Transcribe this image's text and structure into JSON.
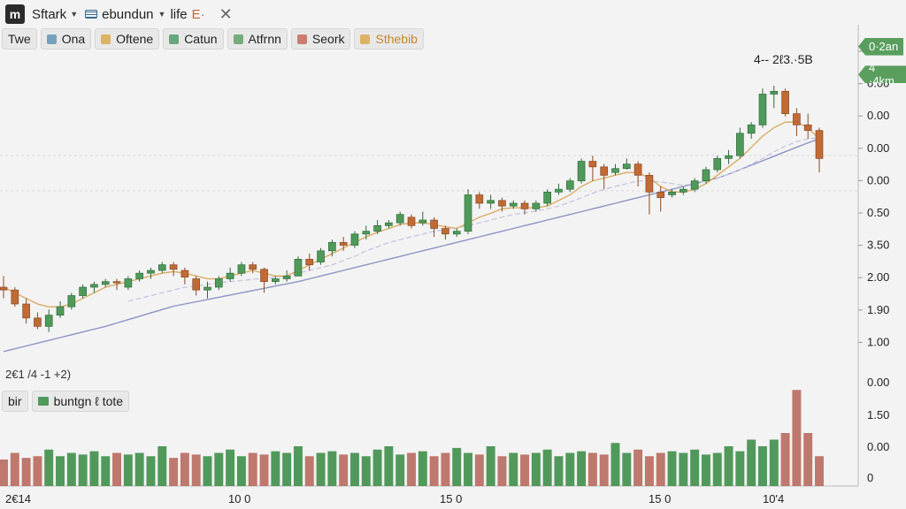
{
  "topbar": {
    "logo": "m",
    "symbol": "Sftark",
    "indicator_label": "ebundun",
    "interval": "life",
    "extra": "E·",
    "close_glyph": "✕"
  },
  "chips": [
    {
      "label": "Twe",
      "icon": "none",
      "color": "#222222",
      "swatch": ""
    },
    {
      "label": "Ona",
      "icon": "chart-icon",
      "color": "#222222",
      "swatch": "#4f8ab0"
    },
    {
      "label": "Oftene",
      "icon": "circle-icon",
      "color": "#222222",
      "swatch": "#d8a23b"
    },
    {
      "label": "Catun",
      "icon": "triangle-icon",
      "color": "#222222",
      "swatch": "#3f8f5a"
    },
    {
      "label": "Atfrnn",
      "icon": "shield-icon",
      "color": "#222222",
      "swatch": "#4f9a5a"
    },
    {
      "label": "Seork",
      "icon": "bars-icon",
      "color": "#222222",
      "swatch": "#c25a4a"
    },
    {
      "label": "Sthebib",
      "icon": "circle-icon",
      "color": "#c2872c",
      "swatch": "#d8a23b"
    }
  ],
  "ohlc_readout": "2€1 /4 -1 +2)",
  "price_note": "4-- 2ℓ3.·5B",
  "volume_legend": {
    "left": "bir",
    "label": "buntgn ℓ tote",
    "swatch": "#4f9a5a"
  },
  "tags": [
    {
      "label": "0·2an",
      "color": "#5a9e5e",
      "value": 6.6
    },
    {
      "label": "4 ·4km",
      "color": "#5a9e5e",
      "value": 6.1
    }
  ],
  "chart_data": {
    "type": "candlestick",
    "price_axis_labels": [
      "0.00",
      "0.00",
      "0.00",
      "0.00",
      "0.00",
      "0.50",
      "3.50",
      "2.00",
      "1.90",
      "1.00"
    ],
    "volume_axis_labels": [
      "0.00",
      "1.50",
      "0.00",
      "0"
    ],
    "x_tick_labels": [
      "2€14",
      "10 0",
      "15 0",
      "15 0",
      "10'4"
    ],
    "candles": [
      [
        2.3,
        2.5,
        2.25,
        2.1
      ],
      [
        2.25,
        2.3,
        2.0,
        1.95
      ],
      [
        2.0,
        2.1,
        1.75,
        1.65
      ],
      [
        1.75,
        1.85,
        1.6,
        1.55
      ],
      [
        1.6,
        1.9,
        1.8,
        1.5
      ],
      [
        1.8,
        2.05,
        1.95,
        1.75
      ],
      [
        1.95,
        2.2,
        2.15,
        1.9
      ],
      [
        2.15,
        2.35,
        2.3,
        2.1
      ],
      [
        2.3,
        2.4,
        2.35,
        2.2
      ],
      [
        2.35,
        2.45,
        2.4,
        2.3
      ],
      [
        2.4,
        2.45,
        2.38,
        2.25
      ],
      [
        2.3,
        2.5,
        2.45,
        2.25
      ],
      [
        2.45,
        2.6,
        2.55,
        2.4
      ],
      [
        2.55,
        2.65,
        2.6,
        2.45
      ],
      [
        2.6,
        2.75,
        2.7,
        2.55
      ],
      [
        2.7,
        2.75,
        2.62,
        2.5
      ],
      [
        2.6,
        2.65,
        2.48,
        2.35
      ],
      [
        2.45,
        2.5,
        2.25,
        2.15
      ],
      [
        2.25,
        2.4,
        2.3,
        2.1
      ],
      [
        2.3,
        2.5,
        2.45,
        2.25
      ],
      [
        2.45,
        2.65,
        2.55,
        2.4
      ],
      [
        2.55,
        2.75,
        2.7,
        2.5
      ],
      [
        2.7,
        2.75,
        2.62,
        2.55
      ],
      [
        2.62,
        2.65,
        2.4,
        2.2
      ],
      [
        2.4,
        2.5,
        2.45,
        2.35
      ],
      [
        2.45,
        2.6,
        2.5,
        2.4
      ],
      [
        2.5,
        2.85,
        2.8,
        2.5
      ],
      [
        2.8,
        2.9,
        2.7,
        2.6
      ],
      [
        2.75,
        3.0,
        2.95,
        2.7
      ],
      [
        2.95,
        3.15,
        3.1,
        2.85
      ],
      [
        3.1,
        3.2,
        3.05,
        2.95
      ],
      [
        3.05,
        3.3,
        3.25,
        3.0
      ],
      [
        3.25,
        3.4,
        3.3,
        3.15
      ],
      [
        3.3,
        3.5,
        3.4,
        3.25
      ],
      [
        3.4,
        3.5,
        3.45,
        3.35
      ],
      [
        3.45,
        3.65,
        3.6,
        3.4
      ],
      [
        3.55,
        3.6,
        3.4,
        3.35
      ],
      [
        3.45,
        3.65,
        3.5,
        3.4
      ],
      [
        3.5,
        3.55,
        3.35,
        3.2
      ],
      [
        3.35,
        3.4,
        3.25,
        3.15
      ],
      [
        3.25,
        3.35,
        3.3,
        3.2
      ],
      [
        3.3,
        4.05,
        3.95,
        3.25
      ],
      [
        3.95,
        4.0,
        3.8,
        3.7
      ],
      [
        3.8,
        3.95,
        3.85,
        3.7
      ],
      [
        3.85,
        3.9,
        3.75,
        3.65
      ],
      [
        3.75,
        3.85,
        3.8,
        3.7
      ],
      [
        3.8,
        3.85,
        3.7,
        3.6
      ],
      [
        3.7,
        3.85,
        3.8,
        3.65
      ],
      [
        3.8,
        4.05,
        4.0,
        3.75
      ],
      [
        4.0,
        4.15,
        4.05,
        3.95
      ],
      [
        4.05,
        4.25,
        4.2,
        4.0
      ],
      [
        4.2,
        4.6,
        4.55,
        4.15
      ],
      [
        4.55,
        4.65,
        4.45,
        4.2
      ],
      [
        4.45,
        4.5,
        4.3,
        4.05
      ],
      [
        4.35,
        4.5,
        4.42,
        4.3
      ],
      [
        4.42,
        4.6,
        4.5,
        4.4
      ],
      [
        4.5,
        4.55,
        4.3,
        4.1
      ],
      [
        4.3,
        4.35,
        4.0,
        3.6
      ],
      [
        4.0,
        4.1,
        3.9,
        3.65
      ],
      [
        3.95,
        4.05,
        4.0,
        3.9
      ],
      [
        4.0,
        4.1,
        4.05,
        3.95
      ],
      [
        4.05,
        4.25,
        4.2,
        4.0
      ],
      [
        4.2,
        4.45,
        4.4,
        4.15
      ],
      [
        4.4,
        4.65,
        4.6,
        4.35
      ],
      [
        4.6,
        4.75,
        4.65,
        4.5
      ],
      [
        4.65,
        5.15,
        5.05,
        4.6
      ],
      [
        5.05,
        5.25,
        5.2,
        4.95
      ],
      [
        5.2,
        5.85,
        5.75,
        5.15
      ],
      [
        5.75,
        5.9,
        5.8,
        5.5
      ],
      [
        5.8,
        5.85,
        5.4,
        5.35
      ],
      [
        5.4,
        5.5,
        5.2,
        5.0
      ],
      [
        5.2,
        5.4,
        5.1,
        4.95
      ],
      [
        5.1,
        5.15,
        4.6,
        4.35
      ]
    ],
    "ma_fast": [
      2.3,
      2.2,
      2.1,
      2.0,
      1.95,
      1.95,
      2.0,
      2.1,
      2.2,
      2.3,
      2.35,
      2.4,
      2.45,
      2.5,
      2.55,
      2.58,
      2.55,
      2.5,
      2.45,
      2.45,
      2.5,
      2.55,
      2.6,
      2.55,
      2.5,
      2.5,
      2.6,
      2.7,
      2.8,
      2.9,
      3.0,
      3.1,
      3.2,
      3.28,
      3.35,
      3.42,
      3.45,
      3.45,
      3.42,
      3.38,
      3.35,
      3.45,
      3.55,
      3.62,
      3.7,
      3.72,
      3.72,
      3.72,
      3.75,
      3.85,
      3.95,
      4.1,
      4.2,
      4.25,
      4.3,
      4.35,
      4.35,
      4.25,
      4.1,
      4.0,
      4.0,
      4.05,
      4.15,
      4.3,
      4.45,
      4.6,
      4.8,
      5.0,
      5.15,
      5.25,
      5.25,
      5.15,
      4.95
    ],
    "ma_mid": [
      null,
      null,
      null,
      null,
      null,
      null,
      null,
      null,
      null,
      null,
      null,
      2.05,
      2.1,
      2.15,
      2.2,
      2.25,
      2.3,
      2.32,
      2.35,
      2.38,
      2.4,
      2.42,
      2.44,
      2.46,
      2.48,
      2.5,
      2.55,
      2.6,
      2.65,
      2.7,
      2.78,
      2.85,
      2.95,
      3.02,
      3.1,
      3.15,
      3.2,
      3.25,
      3.3,
      3.33,
      3.36,
      3.4,
      3.45,
      3.5,
      3.55,
      3.6,
      3.63,
      3.66,
      3.7,
      3.75,
      3.82,
      3.9,
      3.98,
      4.05,
      4.1,
      4.15,
      4.2,
      4.2,
      4.18,
      4.15,
      4.12,
      4.15,
      4.2,
      4.25,
      4.32,
      4.4,
      4.5,
      4.6,
      4.72,
      4.82,
      4.9,
      4.95,
      4.97
    ],
    "ma_slow": [
      1.15,
      1.2,
      1.25,
      1.3,
      1.35,
      1.4,
      1.45,
      1.5,
      1.55,
      1.6,
      1.66,
      1.72,
      1.78,
      1.84,
      1.9,
      1.96,
      2.0,
      2.04,
      2.08,
      2.12,
      2.16,
      2.2,
      2.24,
      2.28,
      2.32,
      2.36,
      2.4,
      2.45,
      2.5,
      2.55,
      2.6,
      2.65,
      2.7,
      2.75,
      2.8,
      2.85,
      2.9,
      2.95,
      3.0,
      3.05,
      3.1,
      3.15,
      3.2,
      3.25,
      3.3,
      3.35,
      3.4,
      3.45,
      3.5,
      3.55,
      3.6,
      3.65,
      3.7,
      3.75,
      3.8,
      3.85,
      3.9,
      3.95,
      4.0,
      4.05,
      4.1,
      4.15,
      4.2,
      4.25,
      4.32,
      4.4,
      4.48,
      4.56,
      4.64,
      4.72,
      4.8,
      4.88,
      4.95
    ],
    "volumes": [
      0.8,
      1.0,
      0.85,
      0.9,
      1.1,
      0.9,
      1.0,
      0.95,
      1.05,
      0.9,
      1.0,
      0.95,
      1.0,
      0.9,
      1.2,
      0.85,
      1.0,
      0.95,
      0.9,
      1.0,
      1.1,
      0.9,
      1.0,
      0.95,
      1.05,
      1.0,
      1.2,
      0.9,
      1.0,
      1.05,
      0.95,
      1.0,
      0.9,
      1.1,
      1.2,
      0.95,
      1.0,
      1.05,
      0.9,
      1.0,
      1.15,
      1.0,
      0.95,
      1.2,
      0.9,
      1.0,
      0.95,
      1.0,
      1.1,
      0.9,
      1.0,
      1.05,
      1.0,
      0.95,
      1.3,
      1.0,
      1.1,
      0.9,
      1.0,
      1.05,
      1.0,
      1.1,
      0.95,
      1.0,
      1.2,
      1.05,
      1.4,
      1.2,
      1.4,
      1.6,
      2.9,
      1.6,
      0.9
    ],
    "price_range": [
      0.8,
      6.8
    ],
    "volume_range": [
      0,
      3.2
    ],
    "colors": {
      "up": "#4f9a5a",
      "down": "#c06a35",
      "ma_fast": "#d9a85b",
      "ma_mid": "#c5c5e0",
      "ma_slow": "#8c93c4",
      "vol_up": "#3f8f4a",
      "vol_down": "#b86a5e"
    },
    "grid": true
  }
}
